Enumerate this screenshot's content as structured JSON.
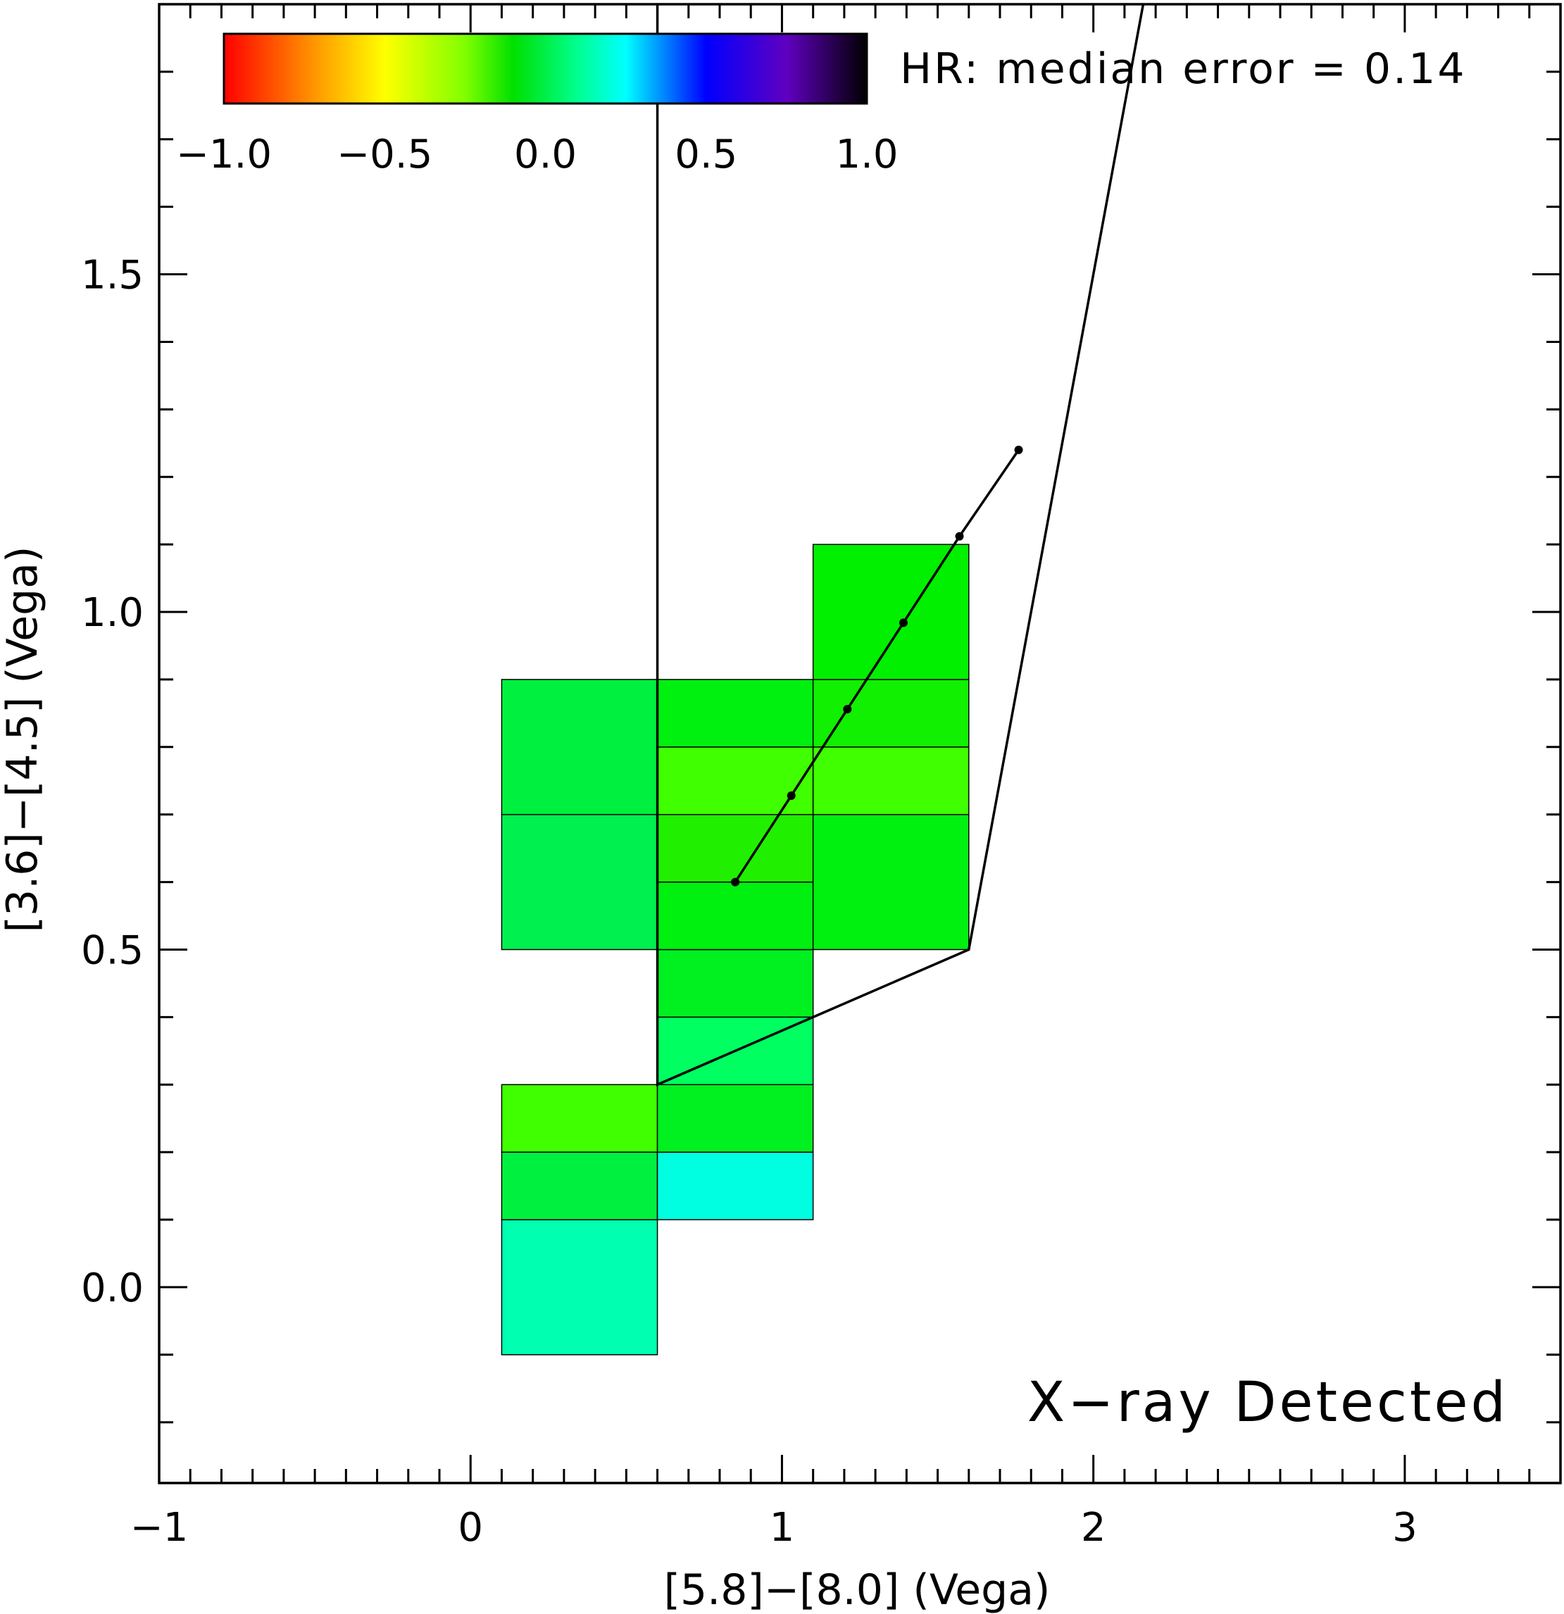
{
  "chart_data": {
    "type": "heatmap",
    "xlabel": "[5.8]−[8.0] (Vega)",
    "ylabel": "[3.6]−[4.5] (Vega)",
    "xlim": [
      -1,
      3.5
    ],
    "ylim": [
      -0.29,
      1.9
    ],
    "x_ticks": [
      -1,
      0,
      1,
      2,
      3
    ],
    "x_tick_labels": [
      "−1",
      "0",
      "1",
      "2",
      "3"
    ],
    "y_ticks": [
      0.0,
      0.5,
      1.0,
      1.5
    ],
    "y_tick_labels": [
      "0.0",
      "0.5",
      "1.0",
      "1.5"
    ],
    "x_minor_step": 0.1,
    "y_minor_step": 0.1,
    "annotations": {
      "error_note": "HR: median error = 0.14",
      "corner_label": "X−ray Detected"
    },
    "colorbar": {
      "range": [
        -1.0,
        1.0
      ],
      "tick_values": [
        -1.0,
        -0.5,
        0.0,
        0.5,
        1.0
      ],
      "tick_labels": [
        "−1.0",
        "−0.5",
        "0.0",
        "0.5",
        "1.0"
      ],
      "stops": [
        {
          "value": -1.0,
          "color": "#ff0000"
        },
        {
          "value": -0.7,
          "color": "#ffa000"
        },
        {
          "value": -0.5,
          "color": "#ffff00"
        },
        {
          "value": -0.25,
          "color": "#80ff00"
        },
        {
          "value": -0.1,
          "color": "#00e000"
        },
        {
          "value": 0.1,
          "color": "#00ff90"
        },
        {
          "value": 0.25,
          "color": "#00ffff"
        },
        {
          "value": 0.5,
          "color": "#0000ff"
        },
        {
          "value": 0.75,
          "color": "#6000c0"
        },
        {
          "value": 1.0,
          "color": "#000000"
        }
      ]
    },
    "cells": [
      {
        "x0": 0.1,
        "x1": 0.6,
        "y0": -0.1,
        "y1": 0.1,
        "hr": 0.12,
        "color": "#00ffb0"
      },
      {
        "x0": 0.1,
        "x1": 0.6,
        "y0": 0.1,
        "y1": 0.2,
        "hr": -0.05,
        "color": "#00f040"
      },
      {
        "x0": 0.1,
        "x1": 0.6,
        "y0": 0.2,
        "y1": 0.3,
        "hr": -0.2,
        "color": "#40ff00"
      },
      {
        "x0": 0.6,
        "x1": 1.1,
        "y0": 0.1,
        "y1": 0.2,
        "hr": 0.2,
        "color": "#00ffe0"
      },
      {
        "x0": 0.6,
        "x1": 1.1,
        "y0": 0.2,
        "y1": 0.3,
        "hr": -0.08,
        "color": "#00f020"
      },
      {
        "x0": 0.6,
        "x1": 1.1,
        "y0": 0.3,
        "y1": 0.4,
        "hr": 0.02,
        "color": "#00ff60"
      },
      {
        "x0": 0.6,
        "x1": 1.1,
        "y0": 0.4,
        "y1": 0.5,
        "hr": -0.08,
        "color": "#00f020"
      },
      {
        "x0": 0.6,
        "x1": 1.1,
        "y0": 0.5,
        "y1": 0.6,
        "hr": -0.1,
        "color": "#00f010"
      },
      {
        "x0": 0.6,
        "x1": 1.1,
        "y0": 0.6,
        "y1": 0.7,
        "hr": -0.15,
        "color": "#20f000"
      },
      {
        "x0": 0.6,
        "x1": 1.1,
        "y0": 0.7,
        "y1": 0.8,
        "hr": -0.2,
        "color": "#40ff00"
      },
      {
        "x0": 0.6,
        "x1": 1.1,
        "y0": 0.8,
        "y1": 0.9,
        "hr": -0.1,
        "color": "#00f010"
      },
      {
        "x0": 0.1,
        "x1": 0.6,
        "y0": 0.5,
        "y1": 0.7,
        "hr": 0.0,
        "color": "#00f050"
      },
      {
        "x0": 0.1,
        "x1": 0.6,
        "y0": 0.7,
        "y1": 0.9,
        "hr": -0.03,
        "color": "#00f040"
      },
      {
        "x0": 1.1,
        "x1": 1.6,
        "y0": 0.5,
        "y1": 0.7,
        "hr": -0.1,
        "color": "#00f010"
      },
      {
        "x0": 1.1,
        "x1": 1.6,
        "y0": 0.7,
        "y1": 0.8,
        "hr": -0.2,
        "color": "#40ff00"
      },
      {
        "x0": 1.1,
        "x1": 1.6,
        "y0": 0.8,
        "y1": 0.9,
        "hr": -0.12,
        "color": "#10f000"
      },
      {
        "x0": 1.1,
        "x1": 1.6,
        "y0": 0.9,
        "y1": 1.1,
        "hr": -0.12,
        "color": "#00f000"
      }
    ],
    "boundary_line": [
      {
        "x": 0.6,
        "y": 1.9
      },
      {
        "x": 0.6,
        "y": 0.3
      },
      {
        "x": 1.6,
        "y": 0.5
      },
      {
        "x": 2.16,
        "y": 1.9
      }
    ],
    "track_points": [
      {
        "x": 0.85,
        "y": 0.6
      },
      {
        "x": 1.03,
        "y": 0.728
      },
      {
        "x": 1.21,
        "y": 0.856
      },
      {
        "x": 1.39,
        "y": 0.984
      },
      {
        "x": 1.57,
        "y": 1.112
      },
      {
        "x": 1.76,
        "y": 1.24
      }
    ]
  }
}
